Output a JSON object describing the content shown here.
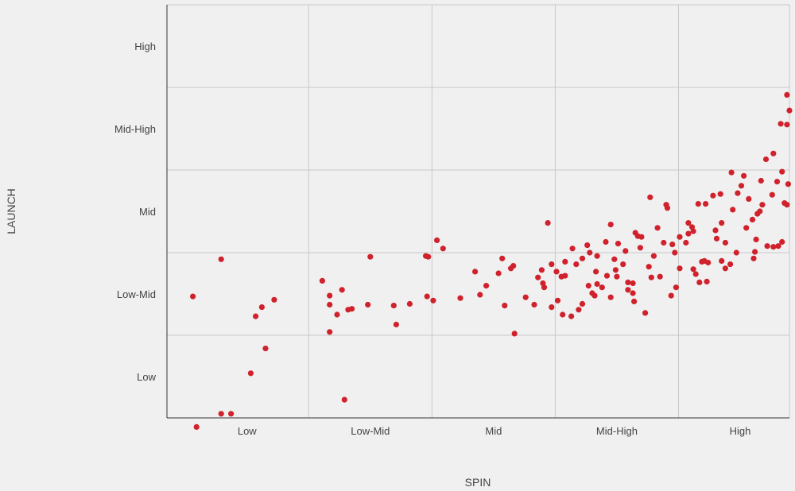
{
  "chart_data": {
    "type": "scatter",
    "title": "",
    "xlabel": "SPIN",
    "ylabel": "LAUNCH",
    "x_tick_labels": [
      "Low",
      "Low-Mid",
      "Mid",
      "Mid-High",
      "High"
    ],
    "y_tick_labels": [
      "Low",
      "Low-Mid",
      "Mid",
      "Mid-High",
      "High"
    ],
    "xlim": [
      0.35,
      5.4
    ],
    "ylim": [
      0.5,
      5.5
    ],
    "grid": true,
    "point_color": "#d0222c",
    "series": [
      {
        "points": [
          [
            0.59,
            0.39
          ],
          [
            0.79,
            0.55
          ],
          [
            0.87,
            0.55
          ],
          [
            0.56,
            1.97
          ],
          [
            0.79,
            2.42
          ],
          [
            1.03,
            1.04
          ],
          [
            1.07,
            1.73
          ],
          [
            1.12,
            1.84
          ],
          [
            1.22,
            1.93
          ],
          [
            1.15,
            1.34
          ],
          [
            1.61,
            2.16
          ],
          [
            1.67,
            1.98
          ],
          [
            1.67,
            1.87
          ],
          [
            1.67,
            1.54
          ],
          [
            1.73,
            1.75
          ],
          [
            1.77,
            2.05
          ],
          [
            1.79,
            0.72
          ],
          [
            1.82,
            1.81
          ],
          [
            1.85,
            1.82
          ],
          [
            1.98,
            1.87
          ],
          [
            2.0,
            2.45
          ],
          [
            2.19,
            1.86
          ],
          [
            2.21,
            1.63
          ],
          [
            2.32,
            1.88
          ],
          [
            2.45,
            2.46
          ],
          [
            2.47,
            2.45
          ],
          [
            2.46,
            1.97
          ],
          [
            2.51,
            1.92
          ],
          [
            2.54,
            2.65
          ],
          [
            2.59,
            2.55
          ],
          [
            2.73,
            1.95
          ],
          [
            2.85,
            2.27
          ],
          [
            2.89,
            1.99
          ],
          [
            2.94,
            2.1
          ],
          [
            3.04,
            2.25
          ],
          [
            3.07,
            2.43
          ],
          [
            3.09,
            1.86
          ],
          [
            3.14,
            2.31
          ],
          [
            3.16,
            2.34
          ],
          [
            3.17,
            1.52
          ],
          [
            3.26,
            1.96
          ],
          [
            3.33,
            1.87
          ],
          [
            3.36,
            2.2
          ],
          [
            3.39,
            2.29
          ],
          [
            3.4,
            2.13
          ],
          [
            3.44,
            2.86
          ],
          [
            3.47,
            2.36
          ],
          [
            3.51,
            2.27
          ],
          [
            3.55,
            2.21
          ],
          [
            3.58,
            2.22
          ],
          [
            3.58,
            2.39
          ],
          [
            3.64,
            2.55
          ],
          [
            3.67,
            2.36
          ],
          [
            3.72,
            2.43
          ],
          [
            3.76,
            2.59
          ],
          [
            3.78,
            2.5
          ],
          [
            3.83,
            2.27
          ],
          [
            3.82,
            1.98
          ],
          [
            3.84,
            2.46
          ],
          [
            3.91,
            2.63
          ],
          [
            3.95,
            2.84
          ],
          [
            3.98,
            2.42
          ],
          [
            4.01,
            2.61
          ],
          [
            4.0,
            2.21
          ],
          [
            4.09,
            2.05
          ],
          [
            4.09,
            2.14
          ],
          [
            4.13,
            2.13
          ],
          [
            4.13,
            2.01
          ],
          [
            4.14,
            1.91
          ],
          [
            4.17,
            2.7
          ],
          [
            4.2,
            2.69
          ],
          [
            4.23,
            1.77
          ],
          [
            4.27,
            3.17
          ],
          [
            4.28,
            2.2
          ],
          [
            4.33,
            2.8
          ],
          [
            4.38,
            2.62
          ],
          [
            4.4,
            3.08
          ],
          [
            4.41,
            3.04
          ],
          [
            4.45,
            2.6
          ],
          [
            4.47,
            2.5
          ],
          [
            4.51,
            2.69
          ],
          [
            4.58,
            2.86
          ],
          [
            4.58,
            2.73
          ],
          [
            4.62,
            2.76
          ],
          [
            4.62,
            2.3
          ],
          [
            4.64,
            2.24
          ],
          [
            4.67,
            2.14
          ],
          [
            4.69,
            2.39
          ],
          [
            4.71,
            2.4
          ],
          [
            4.73,
            2.15
          ],
          [
            4.74,
            2.38
          ],
          [
            4.78,
            3.19
          ],
          [
            4.8,
            2.77
          ],
          [
            4.81,
            2.67
          ],
          [
            4.84,
            3.21
          ],
          [
            4.85,
            2.86
          ],
          [
            4.88,
            2.31
          ],
          [
            4.88,
            2.62
          ],
          [
            4.93,
            3.47
          ],
          [
            4.94,
            3.02
          ],
          [
            4.98,
            3.22
          ],
          [
            5.01,
            3.31
          ],
          [
            5.03,
            3.43
          ],
          [
            5.05,
            2.8
          ],
          [
            5.07,
            3.15
          ],
          [
            5.1,
            2.9
          ],
          [
            5.12,
            2.51
          ],
          [
            5.13,
            2.66
          ],
          [
            5.14,
            2.97
          ],
          [
            5.16,
            3.0
          ],
          [
            5.17,
            3.37
          ],
          [
            5.22,
            2.58
          ],
          [
            5.27,
            2.57
          ],
          [
            5.31,
            2.58
          ],
          [
            5.34,
            2.63
          ],
          [
            5.36,
            3.1
          ],
          [
            5.38,
            3.08
          ],
          [
            5.39,
            3.33
          ],
          [
            5.21,
            3.63
          ],
          [
            5.27,
            3.7
          ],
          [
            5.33,
            4.06
          ],
          [
            5.38,
            4.41
          ],
          [
            5.4,
            4.22
          ],
          [
            5.38,
            4.05
          ],
          [
            5.34,
            3.48
          ],
          [
            5.3,
            3.36
          ],
          [
            5.26,
            3.2
          ],
          [
            5.18,
            3.08
          ],
          [
            5.11,
            2.43
          ],
          [
            4.97,
            2.5
          ],
          [
            4.92,
            2.36
          ],
          [
            4.85,
            2.4
          ],
          [
            4.72,
            3.09
          ],
          [
            4.66,
            3.09
          ],
          [
            4.61,
            2.81
          ],
          [
            4.56,
            2.62
          ],
          [
            4.51,
            2.31
          ],
          [
            4.48,
            2.08
          ],
          [
            4.44,
            1.98
          ],
          [
            4.35,
            2.21
          ],
          [
            4.3,
            2.46
          ],
          [
            4.26,
            2.33
          ],
          [
            4.19,
            2.56
          ],
          [
            4.15,
            2.74
          ],
          [
            4.07,
            2.52
          ],
          [
            4.05,
            2.36
          ],
          [
            3.99,
            2.29
          ],
          [
            3.95,
            1.96
          ],
          [
            3.92,
            2.22
          ],
          [
            3.88,
            2.08
          ],
          [
            3.84,
            2.12
          ],
          [
            3.8,
            2.01
          ],
          [
            3.77,
            2.1
          ],
          [
            3.72,
            1.88
          ],
          [
            3.69,
            1.81
          ],
          [
            3.63,
            1.73
          ],
          [
            3.56,
            1.75
          ],
          [
            3.52,
            1.92
          ],
          [
            3.47,
            1.84
          ],
          [
            3.41,
            2.08
          ]
        ]
      }
    ]
  }
}
